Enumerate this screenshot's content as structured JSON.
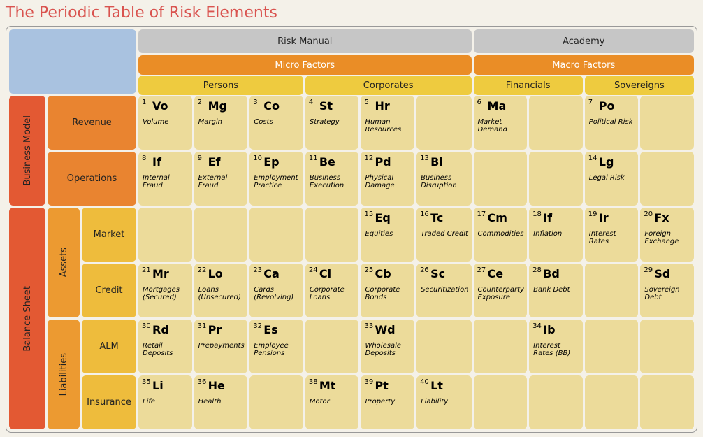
{
  "title": "The Periodic Table of Risk Elements",
  "colors": {
    "blue": "#a9c2e0",
    "grey": "#c6c6c6",
    "orange": "#ea8d26",
    "yellow": "#eecb3f",
    "cell": "#ecdb9a",
    "red1": "#e35933",
    "red2": "#e7702d",
    "red3": "#e98430",
    "amber1": "#ec9a31",
    "amber2": "#eead36",
    "amber3": "#eebc3c"
  },
  "tabs": {
    "manual": "Risk Manual",
    "academy": "Academy"
  },
  "factors": {
    "micro": "Micro Factors",
    "macro": "Macro Factors"
  },
  "cols": {
    "persons": "Persons",
    "corporates": "Corporates",
    "financials": "Financials",
    "sovereigns": "Sovereigns"
  },
  "rows": {
    "business_model": "Business Model",
    "revenue": "Revenue",
    "operations": "Operations",
    "balance_sheet": "Balance Sheet",
    "assets": "Assets",
    "liabilities": "Liabilities",
    "market": "Market",
    "credit": "Credit",
    "alm": "ALM",
    "insurance": "Insurance"
  },
  "el": {
    "1": {
      "s": "Vo",
      "d": "Volume"
    },
    "2": {
      "s": "Mg",
      "d": "Margin"
    },
    "3": {
      "s": "Co",
      "d": "Costs"
    },
    "4": {
      "s": "St",
      "d": "Strategy"
    },
    "5": {
      "s": "Hr",
      "d": "Human Resources"
    },
    "6": {
      "s": "Ma",
      "d": "Market Demand"
    },
    "7": {
      "s": "Po",
      "d": "Political Risk"
    },
    "8": {
      "s": "If",
      "d": "Internal Fraud"
    },
    "9": {
      "s": "Ef",
      "d": "External Fraud"
    },
    "10": {
      "s": "Ep",
      "d": "Employment Practice"
    },
    "11": {
      "s": "Be",
      "d": "Business Execution"
    },
    "12": {
      "s": "Pd",
      "d": "Physical Damage"
    },
    "13": {
      "s": "Bi",
      "d": "Business Disruption"
    },
    "14": {
      "s": "Lg",
      "d": "Legal Risk"
    },
    "15": {
      "s": "Eq",
      "d": "Equities"
    },
    "16": {
      "s": "Tc",
      "d": "Traded Credit"
    },
    "17": {
      "s": "Cm",
      "d": "Commodities"
    },
    "18": {
      "s": "If",
      "d": "Inflation"
    },
    "19": {
      "s": "Ir",
      "d": "Interest Rates"
    },
    "20": {
      "s": "Fx",
      "d": "Foreign Exchange"
    },
    "21": {
      "s": "Mr",
      "d": "Mortgages (Secured)"
    },
    "22": {
      "s": "Lo",
      "d": "Loans (Unsecured)"
    },
    "23": {
      "s": "Ca",
      "d": "Cards (Revolving)"
    },
    "24": {
      "s": "Cl",
      "d": "Corporate Loans"
    },
    "25": {
      "s": "Cb",
      "d": "Corporate Bonds"
    },
    "26": {
      "s": "Sc",
      "d": "Securitization"
    },
    "27": {
      "s": "Ce",
      "d": "Counterparty Exposure"
    },
    "28": {
      "s": "Bd",
      "d": "Bank Debt"
    },
    "29": {
      "s": "Sd",
      "d": "Sovereign Debt"
    },
    "30": {
      "s": "Rd",
      "d": "Retail Deposits"
    },
    "31": {
      "s": "Pr",
      "d": "Prepayments"
    },
    "32": {
      "s": "Es",
      "d": "Employee Pensions"
    },
    "33": {
      "s": "Wd",
      "d": "Wholesale Deposits"
    },
    "34": {
      "s": "Ib",
      "d": "Interest Rates (BB)"
    },
    "35": {
      "s": "Li",
      "d": "Life"
    },
    "36": {
      "s": "He",
      "d": "Health"
    },
    "38": {
      "s": "Mt",
      "d": "Motor"
    },
    "39": {
      "s": "Pt",
      "d": "Property"
    },
    "40": {
      "s": "Lt",
      "d": "Liability"
    }
  },
  "layout": {
    "rows_def": [
      {
        "cols": [
          1,
          2,
          3,
          4,
          5,
          null,
          6,
          null,
          7,
          null
        ]
      },
      {
        "cols": [
          8,
          9,
          10,
          11,
          12,
          13,
          null,
          null,
          14,
          null
        ]
      },
      {
        "cols": [
          null,
          null,
          null,
          null,
          15,
          16,
          17,
          18,
          19,
          20
        ]
      },
      {
        "cols": [
          21,
          22,
          23,
          24,
          25,
          26,
          27,
          28,
          null,
          29
        ]
      },
      {
        "cols": [
          30,
          31,
          32,
          null,
          33,
          null,
          null,
          34,
          null,
          null
        ]
      },
      {
        "cols": [
          35,
          36,
          null,
          38,
          39,
          40,
          null,
          null,
          null,
          null
        ]
      }
    ]
  }
}
